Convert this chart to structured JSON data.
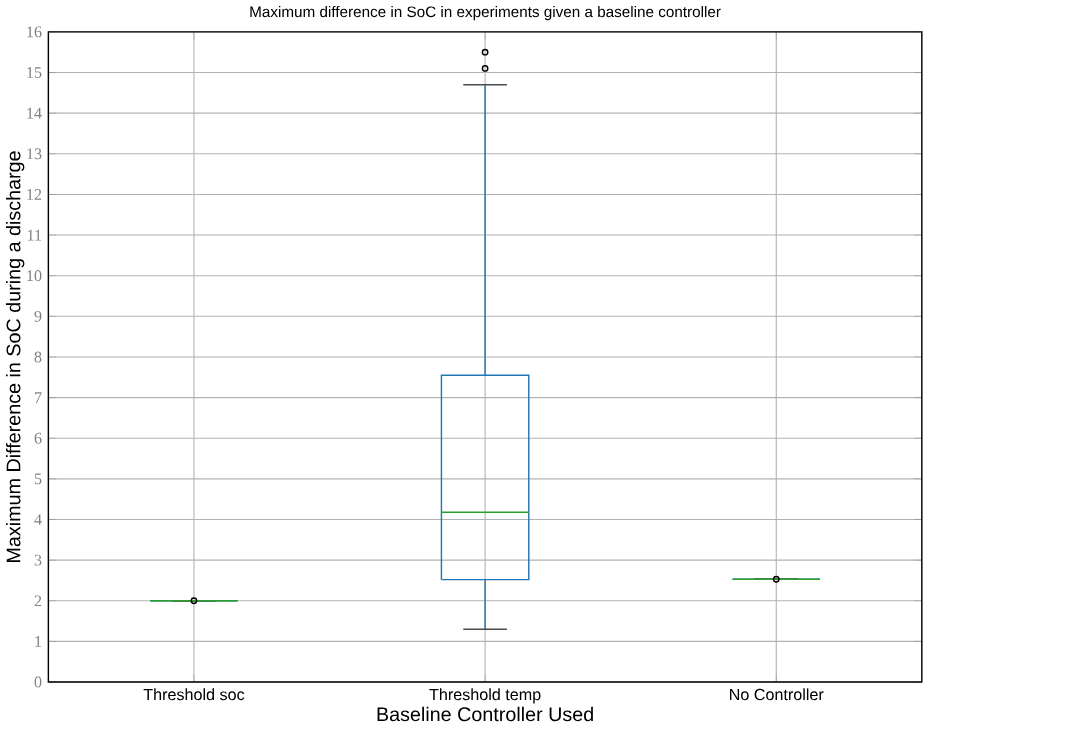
{
  "chart_data": {
    "type": "box",
    "title": "Maximum difference in SoC in experiments given a baseline controller",
    "xlabel": "Baseline Controller Used",
    "ylabel": "Maximum Difference in SoC during a discharge",
    "categories": [
      "Threshold soc",
      "Threshold temp",
      "No Controller"
    ],
    "series": [
      {
        "color": "#1f77b4",
        "boxes": [
          {
            "low": 2.0,
            "q1": 2.0,
            "median": 2.0,
            "q3": 2.0,
            "high": 2.0,
            "outliers": [
              2.0
            ]
          },
          {
            "low": 1.3,
            "q1": 2.52,
            "median": 4.18,
            "q3": 7.55,
            "high": 14.7,
            "outliers": [
              15.1,
              15.5
            ]
          },
          {
            "low": 2.53,
            "q1": 2.53,
            "median": 2.53,
            "q3": 2.53,
            "high": 2.53,
            "outliers": [
              2.53
            ]
          }
        ]
      }
    ],
    "ylim": [
      0,
      16
    ],
    "yticks": [
      0,
      1,
      2,
      3,
      4,
      5,
      6,
      7,
      8,
      9,
      10,
      11,
      12,
      13,
      14,
      15,
      16
    ],
    "grid": true
  }
}
